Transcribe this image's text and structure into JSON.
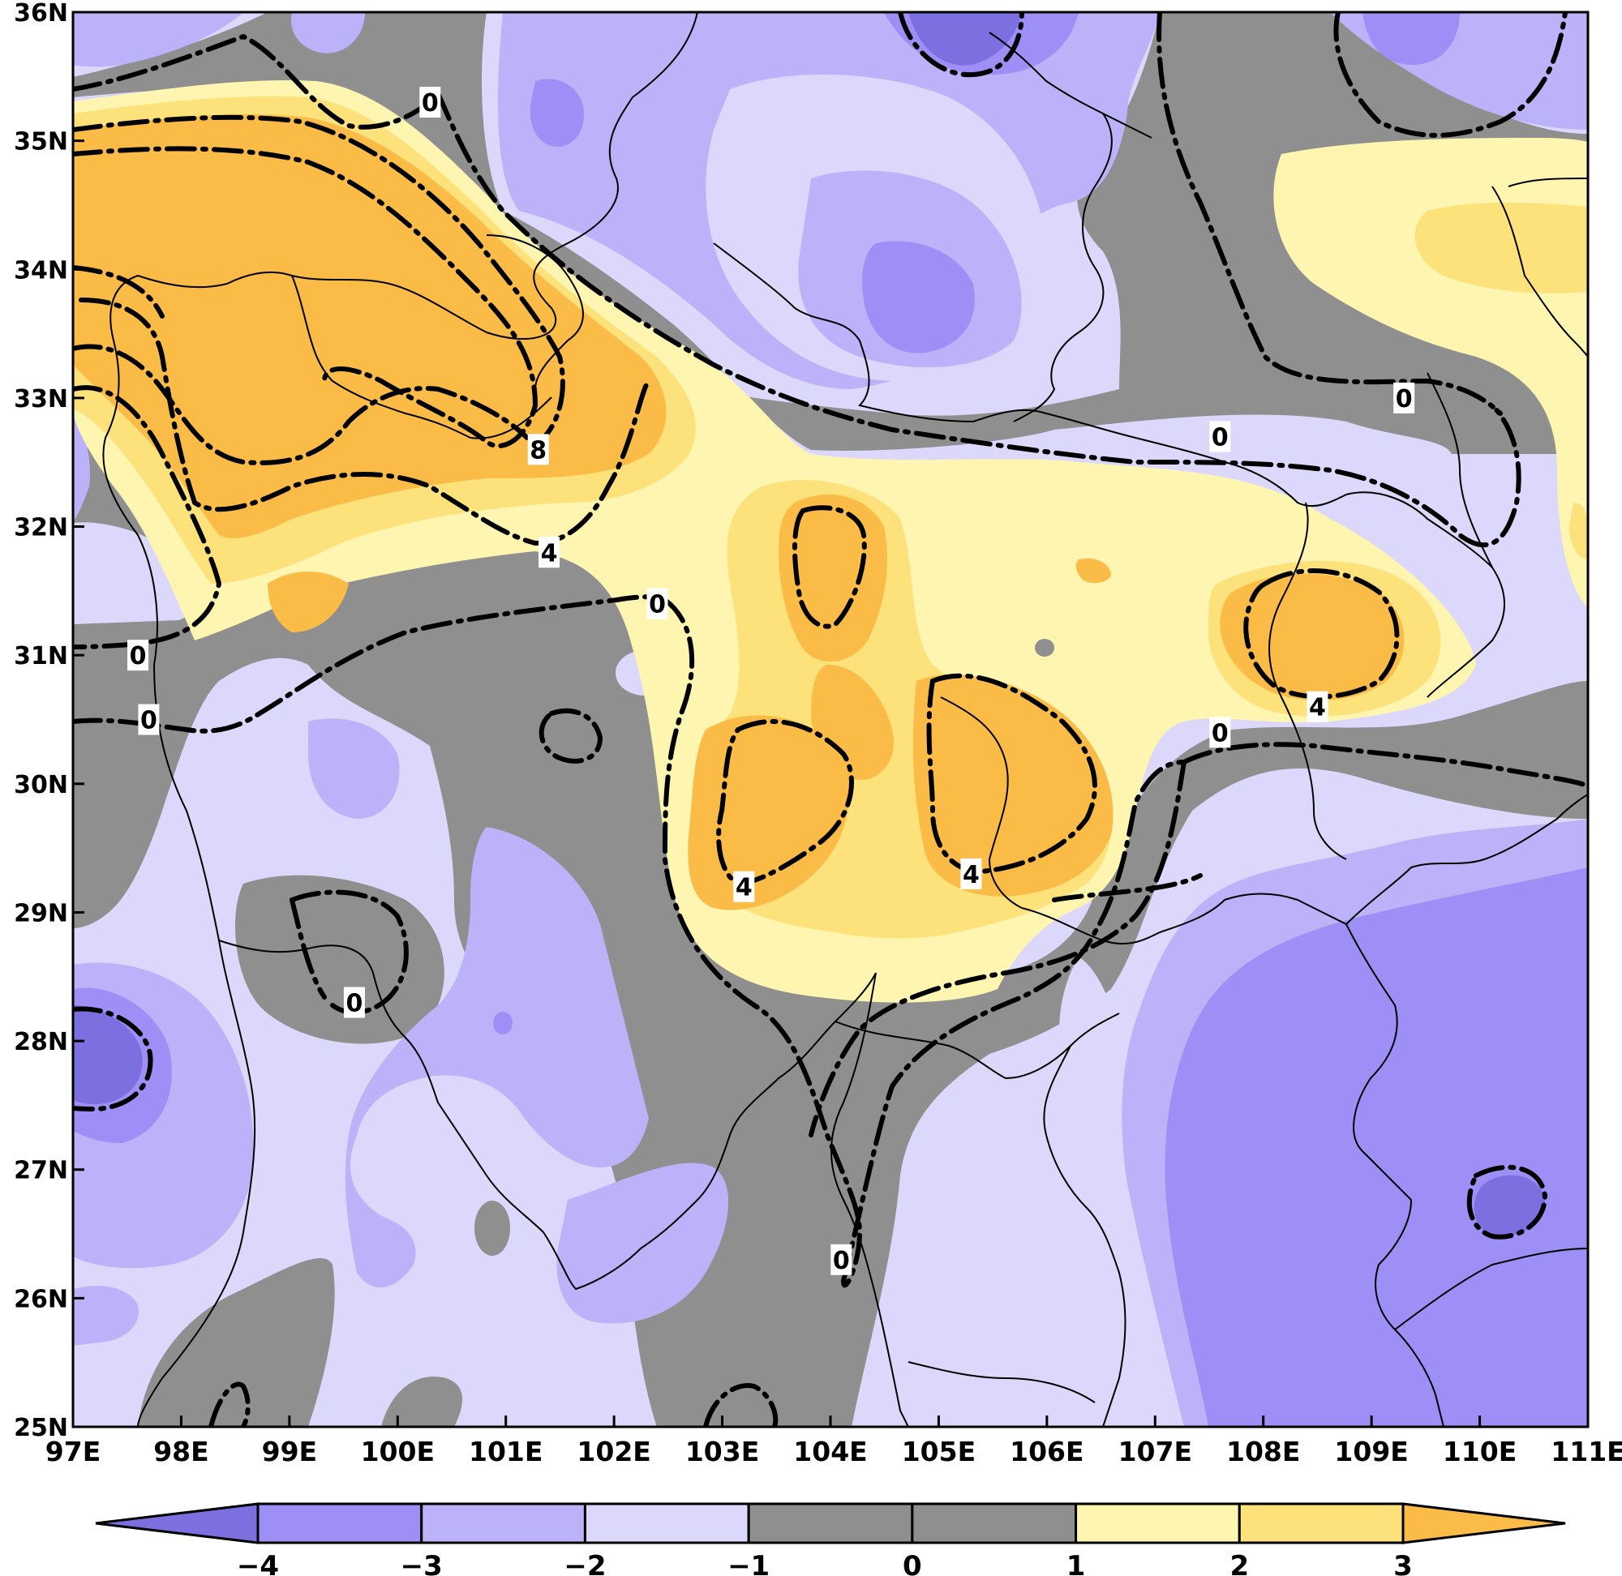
{
  "chart_data": {
    "type": "heatmap",
    "title": "",
    "xlabel": "",
    "ylabel": "",
    "x_range": [
      97,
      111
    ],
    "y_range": [
      25,
      36
    ],
    "x_tick_labels": [
      "97E",
      "98E",
      "99E",
      "100E",
      "101E",
      "102E",
      "103E",
      "104E",
      "105E",
      "106E",
      "107E",
      "108E",
      "109E",
      "110E",
      "111E"
    ],
    "y_tick_labels": [
      "25N",
      "26N",
      "27N",
      "28N",
      "29N",
      "30N",
      "31N",
      "32N",
      "33N",
      "34N",
      "35N",
      "36N"
    ],
    "shading_levels": [
      -4,
      -3,
      -2,
      -1,
      0,
      1,
      2,
      3
    ],
    "colorbar_labels": [
      "−4",
      "−3",
      "−2",
      "−1",
      "0",
      "1",
      "2",
      "3"
    ],
    "colors": {
      "below_-4": "#7c6fe0",
      "-4_to_-3": "#9d8ff5",
      "-3_to_-2": "#bbb2f9",
      "-2_to_-1": "#dcd8fb",
      "-1_to_0": "#8f8f8f",
      "0_to_1": "#8f8f8f",
      "1_to_2": "#fef5b0",
      "2_to_3": "#fde17a",
      "above_3": "#fbbb47"
    },
    "contour_labels": [
      {
        "text": "0",
        "lon": 100.3,
        "lat": 35.3
      },
      {
        "text": "8",
        "lon": 101.3,
        "lat": 32.6
      },
      {
        "text": "4",
        "lon": 101.4,
        "lat": 31.8
      },
      {
        "text": "0",
        "lon": 102.4,
        "lat": 31.4
      },
      {
        "text": "0",
        "lon": 97.6,
        "lat": 31.0
      },
      {
        "text": "0",
        "lon": 97.7,
        "lat": 30.5
      },
      {
        "text": "0",
        "lon": 107.6,
        "lat": 32.7
      },
      {
        "text": "0",
        "lon": 109.3,
        "lat": 33.0
      },
      {
        "text": "4",
        "lon": 103.2,
        "lat": 29.2
      },
      {
        "text": "4",
        "lon": 105.3,
        "lat": 29.3
      },
      {
        "text": "4",
        "lon": 108.5,
        "lat": 30.6
      },
      {
        "text": "0",
        "lon": 107.6,
        "lat": 30.4
      },
      {
        "text": "0",
        "lon": 99.6,
        "lat": 28.3
      },
      {
        "text": "0",
        "lon": 104.1,
        "lat": 26.3
      }
    ]
  }
}
